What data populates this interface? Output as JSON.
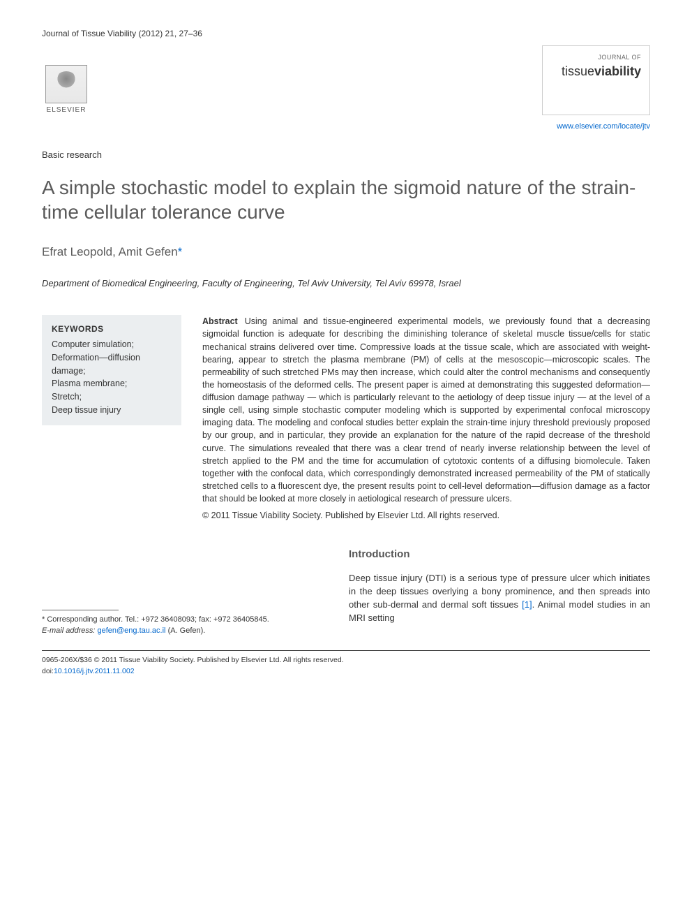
{
  "header": {
    "journal_ref": "Journal of Tissue Viability (2012) 21, 27–36",
    "publisher_name": "ELSEVIER",
    "journal_cover_label": "JOURNAL OF",
    "journal_cover_tissue": "tissue",
    "journal_cover_viability": "viability",
    "journal_url": "www.elsevier.com/locate/jtv"
  },
  "article": {
    "type": "Basic research",
    "title": "A simple stochastic model to explain the sigmoid nature of the strain-time cellular tolerance curve",
    "authors_text": "Efrat Leopold, Amit Gefen",
    "asterisk": "*",
    "affiliation": "Department of Biomedical Engineering, Faculty of Engineering, Tel Aviv University, Tel Aviv 69978, Israel"
  },
  "keywords": {
    "heading": "KEYWORDS",
    "items": "Computer simulation;\nDeformation—diffusion damage;\nPlasma membrane;\nStretch;\nDeep tissue injury"
  },
  "abstract": {
    "label": "Abstract",
    "body": "Using animal and tissue-engineered experimental models, we previously found that a decreasing sigmoidal function is adequate for describing the diminishing tolerance of skeletal muscle tissue/cells for static mechanical strains delivered over time. Compressive loads at the tissue scale, which are associated with weight-bearing, appear to stretch the plasma membrane (PM) of cells at the mesoscopic—microscopic scales. The permeability of such stretched PMs may then increase, which could alter the control mechanisms and consequently the homeostasis of the deformed cells. The present paper is aimed at demonstrating this suggested deformation—diffusion damage pathway — which is particularly relevant to the aetiology of deep tissue injury — at the level of a single cell, using simple stochastic computer modeling which is supported by experimental confocal microscopy imaging data. The modeling and confocal studies better explain the strain-time injury threshold previously proposed by our group, and in particular, they provide an explanation for the nature of the rapid decrease of the threshold curve. The simulations revealed that there was a clear trend of nearly inverse relationship between the level of stretch applied to the PM and the time for accumulation of cytotoxic contents of a diffusing biomolecule. Taken together with the confocal data, which correspondingly demonstrated increased permeability of the PM of statically stretched cells to a fluorescent dye, the present results point to cell-level deformation—diffusion damage as a factor that should be looked at more closely in aetiological research of pressure ulcers.",
    "copyright": "© 2011 Tissue Viability Society. Published by Elsevier Ltd. All rights reserved."
  },
  "correspondence": {
    "text_prefix": "* Corresponding author. Tel.: +972 36408093; fax: +972 36405845.",
    "email_label": "E-mail address:",
    "email": "gefen@eng.tau.ac.il",
    "email_suffix": "(A. Gefen)."
  },
  "introduction": {
    "heading": "Introduction",
    "body_part1": "Deep tissue injury (DTI) is a serious type of pressure ulcer which initiates in the deep tissues overlying a bony prominence, and then spreads into other sub-dermal and dermal soft tissues ",
    "ref1": "[1]",
    "body_part2": ". Animal model studies in an MRI setting"
  },
  "footer": {
    "line1": "0965-206X/$36 © 2011 Tissue Viability Society. Published by Elsevier Ltd. All rights reserved.",
    "doi_label": "doi:",
    "doi": "10.1016/j.jtv.2011.11.002"
  },
  "colors": {
    "link": "#0066cc",
    "text": "#333333",
    "heading": "#5a5a5a",
    "keywords_bg": "#ebeef0"
  },
  "typography": {
    "body_fontsize": 13,
    "title_fontsize": 28,
    "authors_fontsize": 17,
    "abstract_fontsize": 12.5,
    "footer_fontsize": 10.5
  }
}
